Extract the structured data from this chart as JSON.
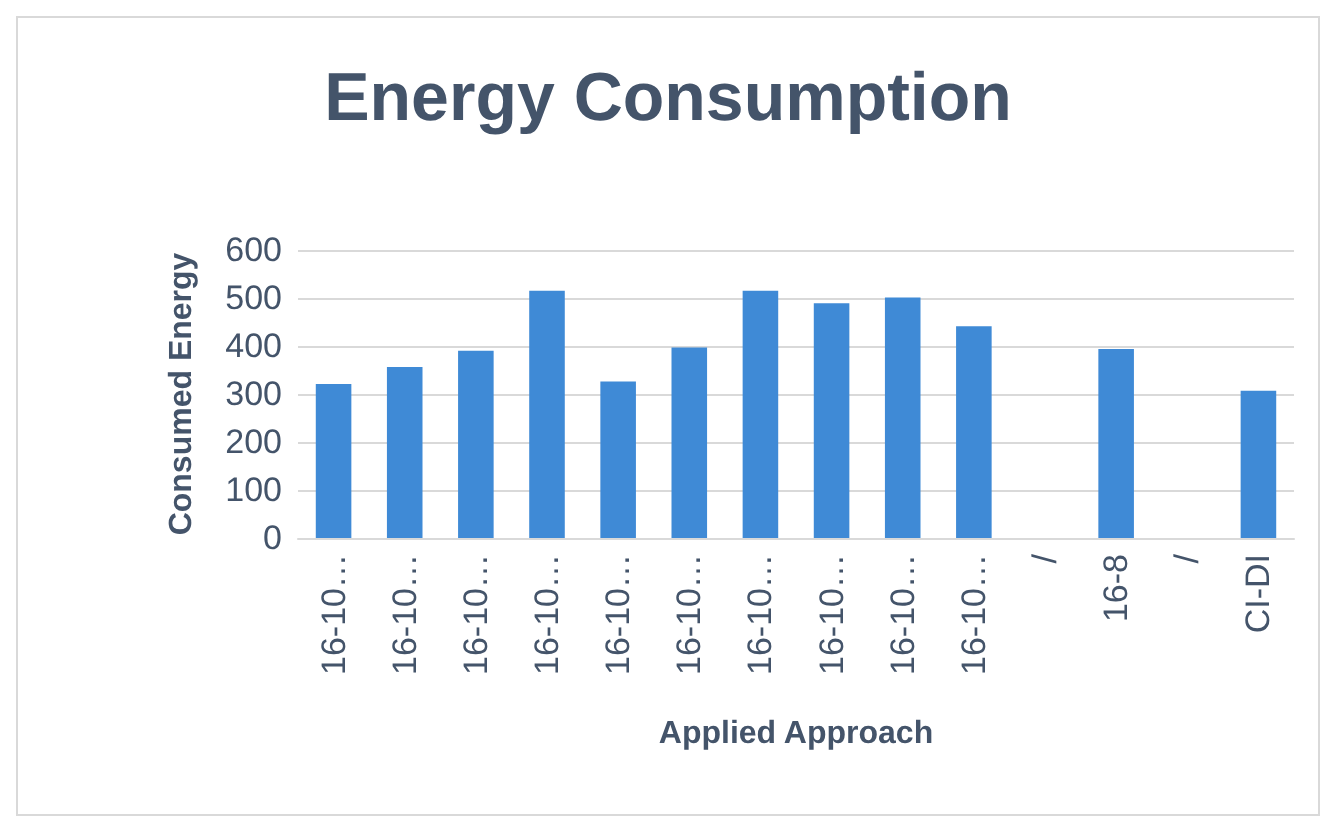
{
  "chart_data": {
    "type": "bar",
    "title": "Energy Consumption",
    "xlabel": "Applied Approach",
    "ylabel": "Consumed Energy",
    "categories": [
      "16-10…",
      "16-10…",
      "16-10…",
      "16-10…",
      "16-10…",
      "16-10…",
      "16-10…",
      "16-10…",
      "16-10…",
      "16-10…",
      "/",
      "16-8",
      "/",
      "CI-DI"
    ],
    "values": [
      321,
      356,
      390,
      515,
      326,
      397,
      515,
      489,
      501,
      441,
      null,
      394,
      null,
      307
    ],
    "color": "#3f8ad6",
    "ylim": [
      0,
      600
    ],
    "yticks": [
      0,
      100,
      200,
      300,
      400,
      500,
      600
    ],
    "grid": "y"
  }
}
